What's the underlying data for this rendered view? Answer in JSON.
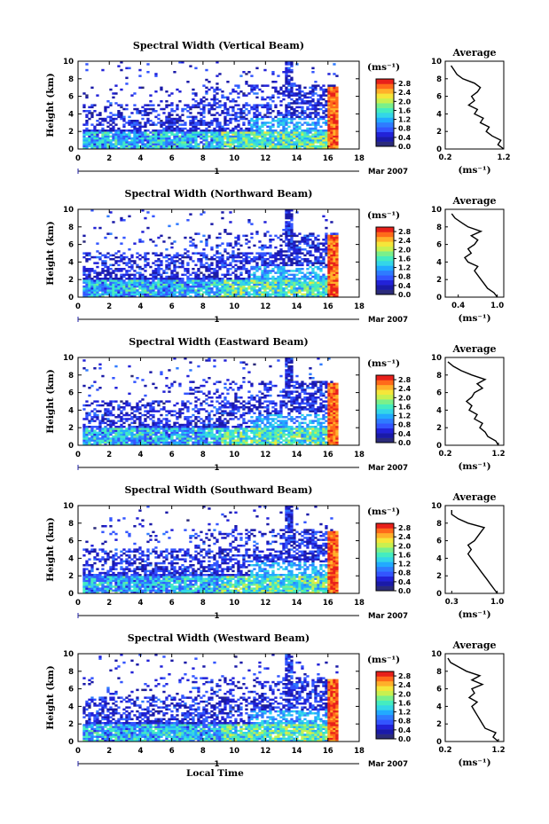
{
  "figure": {
    "date_label": "Mar 2007",
    "day_label": "1",
    "xlabel": "Local Time",
    "ylabel": "Height (km)",
    "colorbar_unit": "(ms⁻¹)",
    "avg_title": "Average",
    "avg_xlabel": "(ms⁻¹)"
  },
  "colors": {
    "colormap": [
      "#2b2b7a",
      "#1a1aa8",
      "#2222d8",
      "#3355ff",
      "#2f7bff",
      "#22aaff",
      "#33d6e8",
      "#44ecc0",
      "#7af08a",
      "#c8f050",
      "#f5e63a",
      "#ffb02a",
      "#ff6a1a",
      "#e8201a"
    ],
    "missing": "#ffffff"
  },
  "chart_data": [
    {
      "type": "heatmap",
      "title": "Spectral Width (Vertical Beam)",
      "x_ticks": [
        "0",
        "2",
        "4",
        "6",
        "8",
        "10",
        "12",
        "14",
        "16",
        "18"
      ],
      "xlim": [
        0,
        18
      ],
      "ylim": [
        0,
        10
      ],
      "y_ticks": [
        "0",
        "2",
        "4",
        "6",
        "8",
        "10"
      ],
      "colorbar_ticks": [
        "0.0",
        "0.4",
        "0.8",
        "1.2",
        "1.6",
        "2.0",
        "2.4",
        "2.8"
      ],
      "colorbar_range": [
        0,
        3.0
      ],
      "avg_profile": {
        "xlim": [
          0.2,
          1.2
        ],
        "x_ticks": [
          "0.2",
          "1.2"
        ],
        "height": [
          0,
          0.5,
          1,
          1.5,
          2,
          2.5,
          3,
          3.5,
          4,
          4.5,
          5,
          5.5,
          6,
          6.5,
          7,
          7.5,
          8,
          8.5,
          9,
          9.5
        ],
        "value": [
          1.2,
          1.1,
          1.15,
          1.0,
          0.9,
          0.95,
          0.8,
          0.85,
          0.7,
          0.75,
          0.6,
          0.7,
          0.65,
          0.75,
          0.8,
          0.7,
          0.5,
          0.4,
          0.35,
          0.3
        ]
      }
    },
    {
      "type": "heatmap",
      "title": "Spectral Width (Northward Beam)",
      "x_ticks": [
        "0",
        "2",
        "4",
        "6",
        "8",
        "10",
        "12",
        "14",
        "16",
        "18"
      ],
      "xlim": [
        0,
        18
      ],
      "ylim": [
        0,
        10
      ],
      "y_ticks": [
        "0",
        "2",
        "4",
        "6",
        "8",
        "10"
      ],
      "colorbar_ticks": [
        "0.0",
        "0.4",
        "0.8",
        "1.2",
        "1.6",
        "2.0",
        "2.4",
        "2.8"
      ],
      "colorbar_range": [
        0,
        3.0
      ],
      "avg_profile": {
        "xlim": [
          0.2,
          1.1
        ],
        "x_ticks": [
          "0.4",
          "1.0"
        ],
        "height": [
          0,
          0.5,
          1,
          1.5,
          2,
          2.5,
          3,
          3.5,
          4,
          4.5,
          5,
          5.5,
          6,
          6.5,
          7,
          7.5,
          8,
          8.5,
          9,
          9.5
        ],
        "value": [
          1.0,
          0.95,
          0.85,
          0.8,
          0.75,
          0.7,
          0.65,
          0.7,
          0.55,
          0.5,
          0.6,
          0.55,
          0.65,
          0.7,
          0.6,
          0.75,
          0.55,
          0.45,
          0.35,
          0.3
        ]
      }
    },
    {
      "type": "heatmap",
      "title": "Spectral Width (Eastward Beam)",
      "x_ticks": [
        "0",
        "2",
        "4",
        "6",
        "8",
        "10",
        "12",
        "14",
        "16",
        "18"
      ],
      "xlim": [
        0,
        18
      ],
      "ylim": [
        0,
        10
      ],
      "y_ticks": [
        "0",
        "2",
        "4",
        "6",
        "8",
        "10"
      ],
      "colorbar_ticks": [
        "0.0",
        "0.4",
        "0.8",
        "1.2",
        "1.6",
        "2.0",
        "2.4",
        "2.8"
      ],
      "colorbar_range": [
        0,
        3.0
      ],
      "avg_profile": {
        "xlim": [
          0.2,
          1.3
        ],
        "x_ticks": [
          "0.2",
          "1.2"
        ],
        "height": [
          0,
          0.5,
          1,
          1.5,
          2,
          2.5,
          3,
          3.5,
          4,
          4.5,
          5,
          5.5,
          6,
          6.5,
          7,
          7.5,
          8,
          8.5,
          9,
          9.5
        ],
        "value": [
          1.2,
          1.15,
          1.0,
          0.95,
          0.85,
          0.9,
          0.75,
          0.8,
          0.65,
          0.7,
          0.6,
          0.7,
          0.75,
          0.9,
          0.8,
          0.95,
          0.7,
          0.5,
          0.35,
          0.25
        ]
      }
    },
    {
      "type": "heatmap",
      "title": "Spectral Width (Southward Beam)",
      "x_ticks": [
        "0",
        "2",
        "4",
        "6",
        "8",
        "10",
        "12",
        "14",
        "16",
        "18"
      ],
      "xlim": [
        0,
        18
      ],
      "ylim": [
        0,
        10
      ],
      "y_ticks": [
        "0",
        "2",
        "4",
        "6",
        "8",
        "10"
      ],
      "colorbar_ticks": [
        "0.0",
        "0.4",
        "0.8",
        "1.2",
        "1.6",
        "2.0",
        "2.4",
        "2.8"
      ],
      "colorbar_range": [
        0,
        3.0
      ],
      "avg_profile": {
        "xlim": [
          0.2,
          1.1
        ],
        "x_ticks": [
          "0.3",
          "1.0"
        ],
        "height": [
          0,
          0.5,
          1,
          1.5,
          2,
          2.5,
          3,
          3.5,
          4,
          4.5,
          5,
          5.5,
          6,
          6.5,
          7,
          7.5,
          8,
          8.5,
          9,
          9.5
        ],
        "value": [
          1.0,
          0.95,
          0.9,
          0.85,
          0.8,
          0.75,
          0.7,
          0.65,
          0.6,
          0.55,
          0.6,
          0.55,
          0.65,
          0.7,
          0.75,
          0.8,
          0.55,
          0.4,
          0.3,
          0.3
        ]
      }
    },
    {
      "type": "heatmap",
      "title": "Spectral Width (Westward Beam)",
      "x_ticks": [
        "0",
        "2",
        "4",
        "6",
        "8",
        "10",
        "12",
        "14",
        "16",
        "18"
      ],
      "xlim": [
        0,
        18
      ],
      "ylim": [
        0,
        10
      ],
      "y_ticks": [
        "0",
        "2",
        "4",
        "6",
        "8",
        "10"
      ],
      "colorbar_ticks": [
        "0.0",
        "0.4",
        "0.8",
        "1.2",
        "1.6",
        "2.0",
        "2.4",
        "2.8"
      ],
      "colorbar_range": [
        0,
        3.0
      ],
      "avg_profile": {
        "xlim": [
          0.2,
          1.3
        ],
        "x_ticks": [
          "0.2",
          "1.2"
        ],
        "height": [
          0,
          0.5,
          1,
          1.5,
          2,
          2.5,
          3,
          3.5,
          4,
          4.5,
          5,
          5.5,
          6,
          6.5,
          7,
          7.5,
          8,
          8.5,
          9,
          9.5
        ],
        "value": [
          1.2,
          1.1,
          1.15,
          0.95,
          0.9,
          0.85,
          0.8,
          0.75,
          0.7,
          0.8,
          0.65,
          0.75,
          0.7,
          0.9,
          0.7,
          0.85,
          0.6,
          0.45,
          0.3,
          0.25
        ]
      }
    }
  ]
}
